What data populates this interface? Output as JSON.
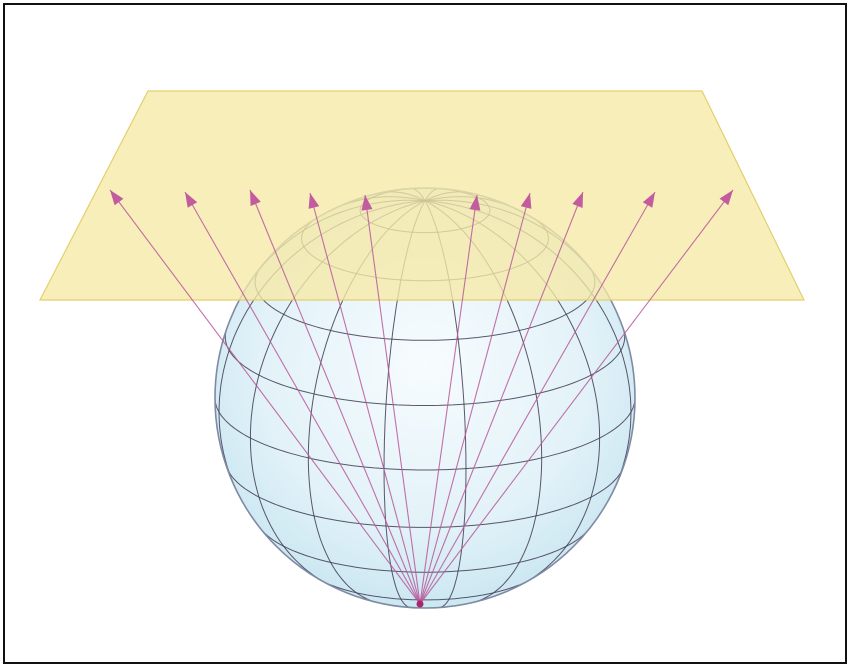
{
  "figure": {
    "kind": "stereographic-projection",
    "colors": {
      "background": "#ffffff",
      "frame": "#111111",
      "plane_fill": "#f6e9a6",
      "plane_stroke": "#e3cf6c",
      "sphere_fill": "#e2f2f8",
      "sphere_edge": "#7f8aa4",
      "graticule": "#3f3a52",
      "ray": "#b8579a",
      "arrowhead": "#c35b9f",
      "pole_point": "#a8286c"
    },
    "graticule": {
      "meridians": 16,
      "parallels": 9
    },
    "rays": {
      "count": 10,
      "origin": "south-pole",
      "direction": "upward-onto-plane"
    }
  }
}
